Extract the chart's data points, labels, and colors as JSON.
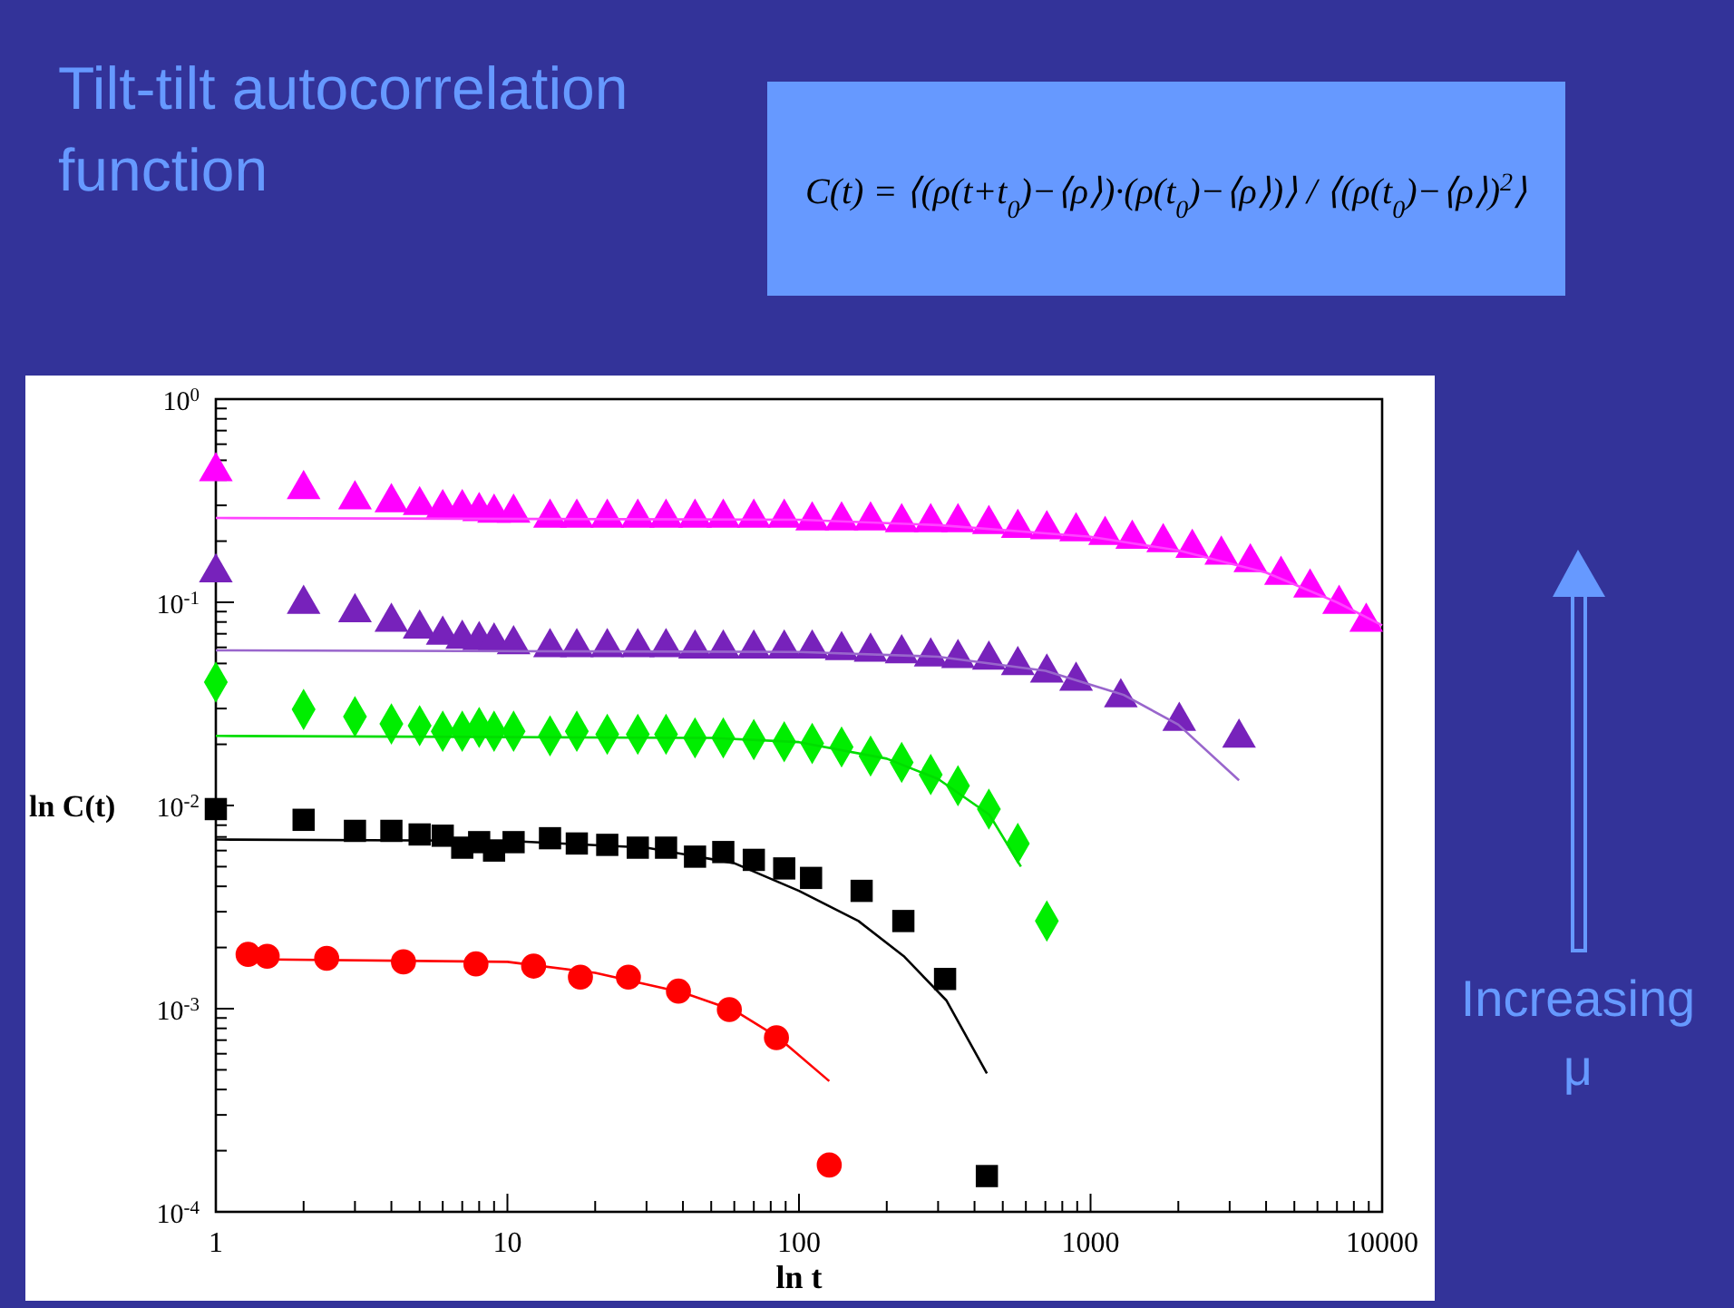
{
  "chart_data": {
    "type": "scatter",
    "title": "Tilt-tilt autocorrelation function",
    "xlabel": "ln t",
    "ylabel": "ln C(t)",
    "log": "xy",
    "grid": false,
    "xlim": [
      1,
      10000
    ],
    "ylim": [
      0.0001,
      1
    ],
    "xticks": [
      {
        "value": 1,
        "label": "1"
      },
      {
        "value": 2,
        "label": null
      },
      {
        "value": 3,
        "label": null
      },
      {
        "value": 4,
        "label": null
      },
      {
        "value": 5,
        "label": null
      },
      {
        "value": 6,
        "label": null
      },
      {
        "value": 7,
        "label": null
      },
      {
        "value": 8,
        "label": null
      },
      {
        "value": 9,
        "label": null
      },
      {
        "value": 10,
        "label": "10"
      },
      {
        "value": 20,
        "label": null
      },
      {
        "value": 30,
        "label": null
      },
      {
        "value": 40,
        "label": null
      },
      {
        "value": 50,
        "label": null
      },
      {
        "value": 60,
        "label": null
      },
      {
        "value": 70,
        "label": null
      },
      {
        "value": 80,
        "label": null
      },
      {
        "value": 90,
        "label": null
      },
      {
        "value": 100,
        "label": "100"
      },
      {
        "value": 200,
        "label": null
      },
      {
        "value": 300,
        "label": null
      },
      {
        "value": 400,
        "label": null
      },
      {
        "value": 500,
        "label": null
      },
      {
        "value": 600,
        "label": null
      },
      {
        "value": 700,
        "label": null
      },
      {
        "value": 800,
        "label": null
      },
      {
        "value": 900,
        "label": null
      },
      {
        "value": 1000,
        "label": "1000"
      },
      {
        "value": 2000,
        "label": null
      },
      {
        "value": 3000,
        "label": null
      },
      {
        "value": 4000,
        "label": null
      },
      {
        "value": 5000,
        "label": null
      },
      {
        "value": 6000,
        "label": null
      },
      {
        "value": 7000,
        "label": null
      },
      {
        "value": 8000,
        "label": null
      },
      {
        "value": 9000,
        "label": null
      },
      {
        "value": 10000,
        "label": "10000"
      }
    ],
    "yticks": [
      {
        "value": 0.0001,
        "label": "10$^{-4}$"
      },
      {
        "value": 0.0002,
        "label": null
      },
      {
        "value": 0.0003,
        "label": null
      },
      {
        "value": 0.0004,
        "label": null
      },
      {
        "value": 0.0005,
        "label": null
      },
      {
        "value": 0.0006,
        "label": null
      },
      {
        "value": 0.0007,
        "label": null
      },
      {
        "value": 0.0008,
        "label": null
      },
      {
        "value": 0.0009,
        "label": null
      },
      {
        "value": 0.001,
        "label": "10$^{-3}$"
      },
      {
        "value": 0.002,
        "label": null
      },
      {
        "value": 0.003,
        "label": null
      },
      {
        "value": 0.004,
        "label": null
      },
      {
        "value": 0.005,
        "label": null
      },
      {
        "value": 0.006,
        "label": null
      },
      {
        "value": 0.007,
        "label": null
      },
      {
        "value": 0.008,
        "label": null
      },
      {
        "value": 0.009,
        "label": null
      },
      {
        "value": 0.01,
        "label": "10$^{-2}$"
      },
      {
        "value": 0.02,
        "label": null
      },
      {
        "value": 0.03,
        "label": null
      },
      {
        "value": 0.04,
        "label": null
      },
      {
        "value": 0.05,
        "label": null
      },
      {
        "value": 0.06,
        "label": null
      },
      {
        "value": 0.07,
        "label": null
      },
      {
        "value": 0.08,
        "label": null
      },
      {
        "value": 0.09,
        "label": null
      },
      {
        "value": 0.1,
        "label": "10$^{-1}$"
      },
      {
        "value": 0.2,
        "label": null
      },
      {
        "value": 0.3,
        "label": null
      },
      {
        "value": 0.4,
        "label": null
      },
      {
        "value": 0.5,
        "label": null
      },
      {
        "value": 0.6,
        "label": null
      },
      {
        "value": 0.7,
        "label": null
      },
      {
        "value": 0.8,
        "label": null
      },
      {
        "value": 0.9,
        "label": null
      },
      {
        "value": 1,
        "label": "10$^{0}$"
      }
    ],
    "annotations": [
      "C(t) = ⟨(ρ(t+t$_{0}$)−⟨ρ⟩)·(ρ(t$_{0}$)−⟨ρ⟩)⟩ / ⟨(ρ(t$_{0}$)−⟨ρ⟩)$^{2}$⟩",
      "Increasing μ"
    ],
    "series": [
      {
        "marker": "triangle",
        "color": "#ff00ff",
        "x": [
          1,
          2,
          3,
          4,
          5,
          6,
          7,
          8,
          9,
          10.5,
          14,
          17.3,
          22,
          28,
          35,
          44,
          55,
          70,
          89,
          111,
          140,
          176,
          225,
          283,
          351,
          448,
          563,
          708,
          892,
          1122,
          1390,
          1775,
          2233,
          2808,
          3532,
          4500,
          5660,
          7120,
          8820
        ],
        "values": [
          0.44,
          0.36,
          0.32,
          0.31,
          0.3,
          0.29,
          0.29,
          0.28,
          0.275,
          0.275,
          0.26,
          0.26,
          0.26,
          0.26,
          0.26,
          0.26,
          0.26,
          0.26,
          0.26,
          0.252,
          0.252,
          0.252,
          0.247,
          0.247,
          0.247,
          0.242,
          0.232,
          0.228,
          0.223,
          0.214,
          0.205,
          0.197,
          0.185,
          0.171,
          0.157,
          0.136,
          0.118,
          0.098,
          0.08
        ]
      },
      {
        "type": "line",
        "marker": "none",
        "color": "#ff44ff",
        "x": [
          1,
          100,
          300,
          1000,
          2000,
          4000,
          7000,
          10000
        ],
        "values": [
          0.26,
          0.255,
          0.24,
          0.21,
          0.18,
          0.14,
          0.1,
          0.077
        ]
      },
      {
        "marker": "triangle",
        "color": "#7722bb",
        "x": [
          1,
          2,
          3,
          4,
          5,
          6,
          7,
          8,
          9,
          10.5,
          14,
          17.3,
          22,
          28,
          35,
          44,
          55,
          70,
          89,
          111,
          140,
          176,
          225,
          283,
          351,
          448,
          563,
          708,
          892,
          1270,
          2015,
          3230
        ],
        "values": [
          0.14,
          0.098,
          0.089,
          0.08,
          0.074,
          0.069,
          0.066,
          0.065,
          0.064,
          0.062,
          0.06,
          0.06,
          0.06,
          0.06,
          0.06,
          0.059,
          0.059,
          0.059,
          0.059,
          0.059,
          0.058,
          0.057,
          0.056,
          0.054,
          0.053,
          0.052,
          0.049,
          0.045,
          0.041,
          0.034,
          0.026,
          0.0215
        ]
      },
      {
        "type": "line",
        "marker": "none",
        "color": "#9966cc",
        "x": [
          1,
          100,
          300,
          700,
          1300,
          2000,
          3230
        ],
        "values": [
          0.058,
          0.057,
          0.054,
          0.046,
          0.035,
          0.025,
          0.0133
        ]
      },
      {
        "marker": "diamond",
        "color": "#00ee00",
        "x": [
          1,
          2,
          3,
          4,
          5,
          6,
          7,
          8,
          9,
          10.5,
          14,
          17.3,
          22,
          28,
          35,
          44,
          55,
          70,
          89,
          111,
          140,
          176,
          225,
          283,
          351,
          448,
          563,
          708
        ],
        "values": [
          0.0405,
          0.0297,
          0.0274,
          0.0252,
          0.0247,
          0.0232,
          0.0232,
          0.0242,
          0.0232,
          0.0232,
          0.022,
          0.0232,
          0.0224,
          0.0224,
          0.0224,
          0.0215,
          0.0215,
          0.0211,
          0.0206,
          0.0202,
          0.0194,
          0.0175,
          0.0163,
          0.0142,
          0.0125,
          0.0096,
          0.0065,
          0.0027
        ]
      },
      {
        "type": "line",
        "marker": "none",
        "color": "#00dd00",
        "x": [
          1,
          50,
          100,
          200,
          300,
          450,
          577
        ],
        "values": [
          0.022,
          0.0215,
          0.0205,
          0.017,
          0.0135,
          0.009,
          0.005
        ]
      },
      {
        "marker": "square",
        "color": "#000000",
        "x": [
          1,
          2,
          3,
          4,
          5,
          6,
          7,
          8,
          9,
          10.5,
          14,
          17.3,
          22,
          28,
          35,
          44,
          55,
          70,
          89,
          110,
          164,
          228,
          317,
          441
        ],
        "values": [
          0.0096,
          0.0085,
          0.0075,
          0.0075,
          0.0072,
          0.0071,
          0.0062,
          0.0066,
          0.006,
          0.0066,
          0.0069,
          0.0065,
          0.0064,
          0.0062,
          0.0062,
          0.0056,
          0.0059,
          0.0054,
          0.0049,
          0.0044,
          0.0038,
          0.0027,
          0.0014,
          0.00015
        ]
      },
      {
        "type": "line",
        "marker": "none",
        "color": "#000000",
        "x": [
          1,
          10,
          30,
          60,
          100,
          160,
          230,
          320,
          441
        ],
        "values": [
          0.0068,
          0.0067,
          0.0062,
          0.0052,
          0.0038,
          0.0027,
          0.0018,
          0.0011,
          0.00048
        ]
      },
      {
        "marker": "circle",
        "color": "#ff0000",
        "x": [
          1.29,
          1.5,
          2.4,
          4.4,
          7.8,
          12.3,
          17.8,
          26,
          38.6,
          57.7,
          83.7,
          127
        ],
        "values": [
          0.00185,
          0.00181,
          0.00177,
          0.0017,
          0.00166,
          0.00162,
          0.00143,
          0.00143,
          0.00122,
          0.00099,
          0.00072,
          0.00017
        ]
      },
      {
        "type": "line",
        "marker": "none",
        "color": "#ff0000",
        "x": [
          1.29,
          10,
          20,
          40,
          60,
          85,
          127
        ],
        "values": [
          0.00175,
          0.0017,
          0.0015,
          0.0012,
          0.00098,
          0.00072,
          0.00044
        ]
      }
    ]
  }
}
